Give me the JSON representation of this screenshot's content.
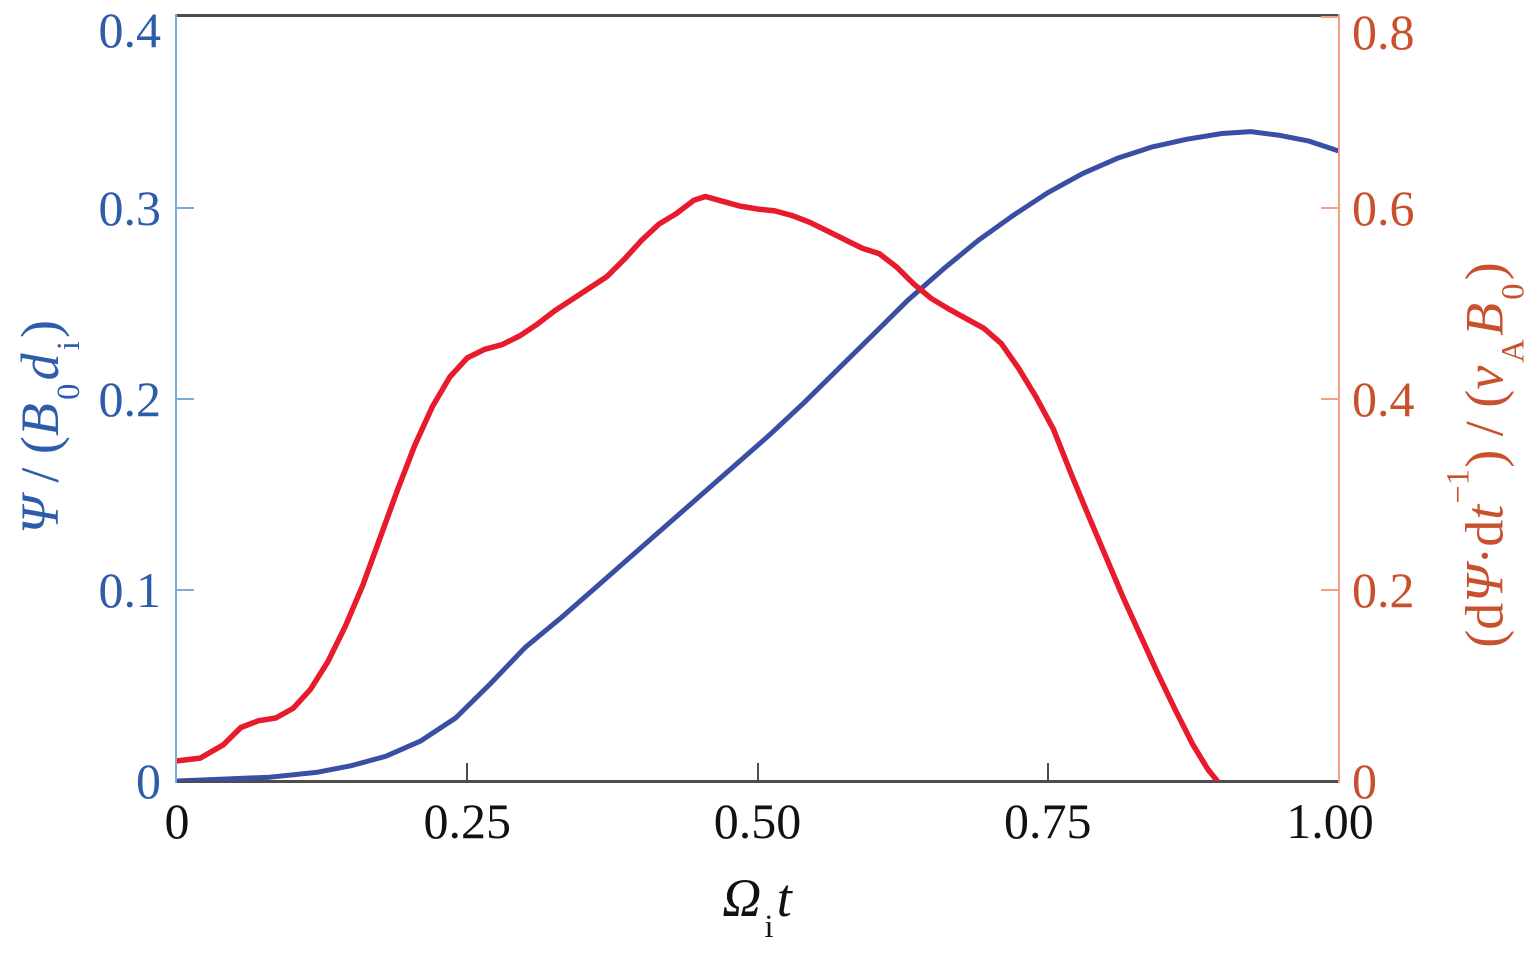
{
  "figure": {
    "background": "#FFFFFF",
    "frame_color": "#4D4D4D",
    "x_axis": {
      "label_text": "Ω_i t",
      "label_parts": [
        {
          "t": "Ω",
          "i": true
        },
        {
          "t": "i",
          "sub": true
        },
        {
          "t": "t",
          "i": true
        }
      ],
      "text_color": "#111111",
      "line_color": "#4D4D4D",
      "ticks": [
        {
          "value": 0,
          "label": "0"
        },
        {
          "value": 0.25,
          "label": "0.25"
        },
        {
          "value": 0.5,
          "label": "0.50"
        },
        {
          "value": 0.75,
          "label": "0.75"
        },
        {
          "value": 1.0,
          "label": "1.00"
        }
      ]
    },
    "left_axis": {
      "label_text": "Ψ / (B_0 d_i)",
      "label_parts": [
        {
          "t": "Ψ",
          "i": true
        },
        {
          "t": " / ("
        },
        {
          "t": "B",
          "i": true
        },
        {
          "t": "0",
          "sub": true
        },
        {
          "t": "d",
          "i": true
        },
        {
          "t": "i",
          "sub": true
        },
        {
          "t": ")"
        }
      ],
      "text_color": "#2D5CAB",
      "line_color": "#7FA9DB",
      "ticks": [
        {
          "value": 0,
          "label": "0"
        },
        {
          "value": 0.1,
          "label": "0.1"
        },
        {
          "value": 0.2,
          "label": "0.2"
        },
        {
          "value": 0.3,
          "label": "0.3"
        },
        {
          "value": 0.4,
          "label": "0.4"
        }
      ]
    },
    "right_axis": {
      "label_text": "(dΨ·dt⁻¹) / (v_A B_0)",
      "label_parts": [
        {
          "t": "(d"
        },
        {
          "t": "Ψ",
          "i": true
        },
        {
          "t": "·d"
        },
        {
          "t": "t",
          "i": true
        },
        {
          "t": "−1",
          "sup": true
        },
        {
          "t": ") / ("
        },
        {
          "t": "v",
          "i": true
        },
        {
          "t": "A",
          "sub": true
        },
        {
          "t": "B",
          "i": true
        },
        {
          "t": "0",
          "sub": true
        },
        {
          "t": ")"
        }
      ],
      "text_color": "#C8502D",
      "line_color": "#F2A08C",
      "ticks": [
        {
          "value": 0,
          "label": "0"
        },
        {
          "value": 0.2,
          "label": "0.2"
        },
        {
          "value": 0.4,
          "label": "0.4"
        },
        {
          "value": 0.6,
          "label": "0.6"
        },
        {
          "value": 0.8,
          "label": "0.8"
        }
      ]
    }
  },
  "chart_data": {
    "type": "line",
    "title": "",
    "xlabel": "Ω_i t",
    "ylabel_left": "Ψ / (B_0 d_i)",
    "ylabel_right": "(dΨ·dt⁻¹) / (v_A B_0)",
    "xlim": [
      0,
      1.0
    ],
    "left_ylim": [
      0,
      0.4
    ],
    "right_ylim": [
      0,
      0.8
    ],
    "grid": false,
    "legend": "none",
    "series": [
      {
        "name": "Ψ / (B_0 d_i)",
        "axis": "left",
        "color": "#3A4EA4",
        "line_width": 5,
        "points": [
          [
            0,
            0
          ],
          [
            0.04,
            0.001
          ],
          [
            0.08,
            0.002
          ],
          [
            0.12,
            0.0045
          ],
          [
            0.15,
            0.008
          ],
          [
            0.18,
            0.013
          ],
          [
            0.21,
            0.021
          ],
          [
            0.24,
            0.033
          ],
          [
            0.27,
            0.051
          ],
          [
            0.3,
            0.07
          ],
          [
            0.33,
            0.085
          ],
          [
            0.36,
            0.101
          ],
          [
            0.39,
            0.117
          ],
          [
            0.42,
            0.133
          ],
          [
            0.45,
            0.149
          ],
          [
            0.48,
            0.165
          ],
          [
            0.51,
            0.181
          ],
          [
            0.54,
            0.198
          ],
          [
            0.57,
            0.216
          ],
          [
            0.6,
            0.234
          ],
          [
            0.63,
            0.252
          ],
          [
            0.66,
            0.268
          ],
          [
            0.69,
            0.283
          ],
          [
            0.72,
            0.296
          ],
          [
            0.75,
            0.308
          ],
          [
            0.78,
            0.318
          ],
          [
            0.81,
            0.326
          ],
          [
            0.84,
            0.332
          ],
          [
            0.87,
            0.336
          ],
          [
            0.9,
            0.339
          ],
          [
            0.925,
            0.34
          ],
          [
            0.95,
            0.338
          ],
          [
            0.975,
            0.335
          ],
          [
            1.0,
            0.33
          ]
        ]
      },
      {
        "name": "(dΨ·dt⁻¹) / (v_A B_0)",
        "axis": "right",
        "color": "#E81B2C",
        "line_width": 5.5,
        "points": [
          [
            0,
            0.021
          ],
          [
            0.02,
            0.024
          ],
          [
            0.04,
            0.038
          ],
          [
            0.055,
            0.056
          ],
          [
            0.07,
            0.063
          ],
          [
            0.085,
            0.066
          ],
          [
            0.1,
            0.076
          ],
          [
            0.115,
            0.096
          ],
          [
            0.13,
            0.125
          ],
          [
            0.145,
            0.162
          ],
          [
            0.16,
            0.205
          ],
          [
            0.175,
            0.255
          ],
          [
            0.19,
            0.305
          ],
          [
            0.205,
            0.352
          ],
          [
            0.22,
            0.392
          ],
          [
            0.235,
            0.423
          ],
          [
            0.25,
            0.443
          ],
          [
            0.265,
            0.452
          ],
          [
            0.28,
            0.457
          ],
          [
            0.295,
            0.466
          ],
          [
            0.31,
            0.478
          ],
          [
            0.325,
            0.492
          ],
          [
            0.34,
            0.504
          ],
          [
            0.355,
            0.516
          ],
          [
            0.37,
            0.528
          ],
          [
            0.385,
            0.546
          ],
          [
            0.4,
            0.566
          ],
          [
            0.415,
            0.583
          ],
          [
            0.43,
            0.594
          ],
          [
            0.445,
            0.608
          ],
          [
            0.455,
            0.612
          ],
          [
            0.47,
            0.607
          ],
          [
            0.485,
            0.602
          ],
          [
            0.5,
            0.599
          ],
          [
            0.515,
            0.597
          ],
          [
            0.53,
            0.592
          ],
          [
            0.545,
            0.585
          ],
          [
            0.56,
            0.576
          ],
          [
            0.575,
            0.567
          ],
          [
            0.59,
            0.558
          ],
          [
            0.605,
            0.552
          ],
          [
            0.62,
            0.538
          ],
          [
            0.635,
            0.52
          ],
          [
            0.65,
            0.505
          ],
          [
            0.665,
            0.494
          ],
          [
            0.68,
            0.484
          ],
          [
            0.695,
            0.474
          ],
          [
            0.71,
            0.458
          ],
          [
            0.725,
            0.432
          ],
          [
            0.74,
            0.402
          ],
          [
            0.755,
            0.368
          ],
          [
            0.77,
            0.322
          ],
          [
            0.785,
            0.278
          ],
          [
            0.8,
            0.235
          ],
          [
            0.815,
            0.192
          ],
          [
            0.83,
            0.152
          ],
          [
            0.845,
            0.112
          ],
          [
            0.86,
            0.074
          ],
          [
            0.875,
            0.038
          ],
          [
            0.888,
            0.012
          ],
          [
            0.896,
            0
          ]
        ]
      }
    ]
  }
}
